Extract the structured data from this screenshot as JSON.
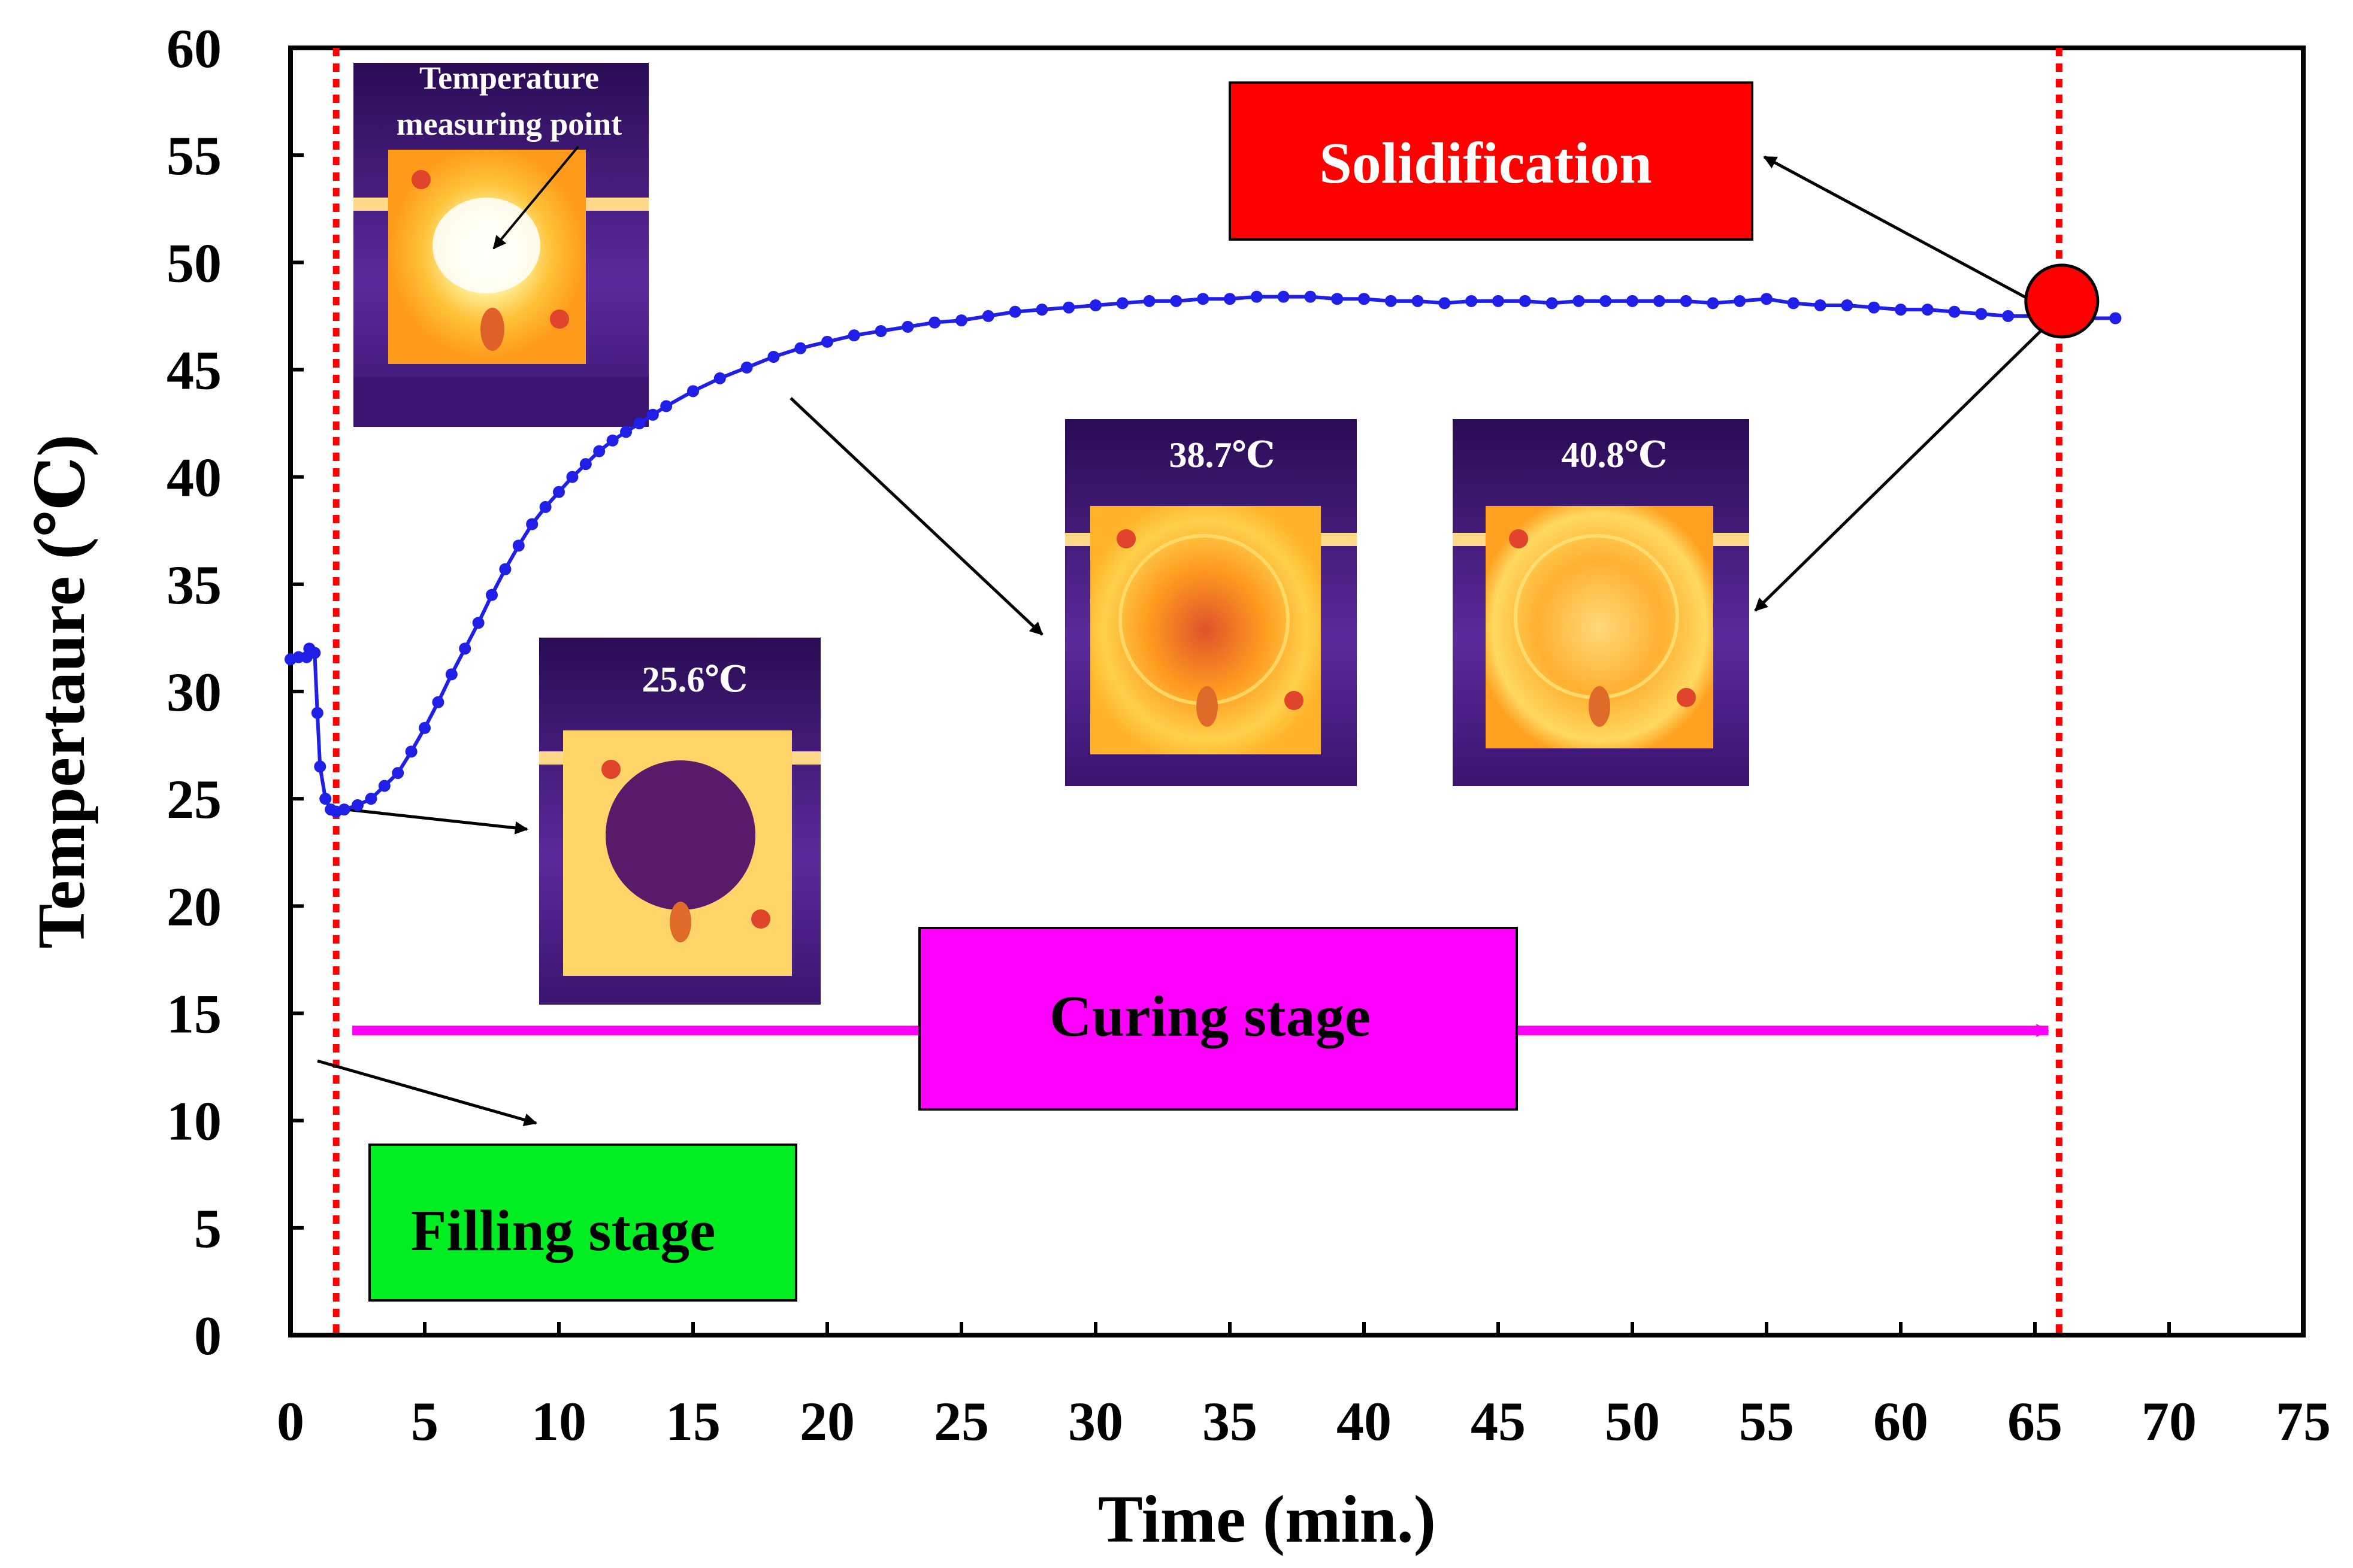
{
  "chart_data": {
    "type": "line",
    "title": "",
    "xlabel": "Time (min.)",
    "ylabel": "Tempertaure (℃)",
    "xlim": [
      0,
      75
    ],
    "ylim": [
      0,
      60
    ],
    "xticks": [
      0,
      5,
      10,
      15,
      20,
      25,
      30,
      35,
      40,
      45,
      50,
      55,
      60,
      65,
      70,
      75
    ],
    "yticks": [
      0,
      5,
      10,
      15,
      20,
      25,
      30,
      35,
      40,
      45,
      50,
      55,
      60
    ],
    "grid": false,
    "series": [
      {
        "name": "Temperature",
        "color": "#1f1fe8",
        "marker": "circle",
        "x": [
          0.0,
          0.3,
          0.6,
          0.7,
          0.9,
          1.0,
          1.1,
          1.3,
          1.5,
          1.7,
          2.0,
          2.5,
          3.0,
          3.5,
          4.0,
          4.5,
          5.0,
          5.5,
          6.0,
          6.5,
          7.0,
          7.5,
          8.0,
          8.5,
          9.0,
          9.5,
          10.0,
          10.5,
          11.0,
          11.5,
          12.0,
          12.5,
          13.0,
          13.5,
          14.0,
          15.0,
          16.0,
          17.0,
          18.0,
          19.0,
          20.0,
          21.0,
          22.0,
          23.0,
          24.0,
          25.0,
          26.0,
          27.0,
          28.0,
          29.0,
          30.0,
          31.0,
          32.0,
          33.0,
          34.0,
          35.0,
          36.0,
          37.0,
          38.0,
          39.0,
          40.0,
          41.0,
          42.0,
          43.0,
          44.0,
          45.0,
          46.0,
          47.0,
          48.0,
          49.0,
          50.0,
          51.0,
          52.0,
          53.0,
          54.0,
          55.0,
          56.0,
          57.0,
          58.0,
          59.0,
          60.0,
          61.0,
          62.0,
          63.0,
          64.0,
          65.0,
          66.0,
          67.0,
          68.0
        ],
        "y": [
          31.5,
          31.6,
          31.6,
          32.0,
          31.8,
          29.0,
          26.5,
          25.0,
          24.5,
          24.4,
          24.5,
          24.7,
          25.0,
          25.6,
          26.2,
          27.2,
          28.3,
          29.5,
          30.8,
          32.0,
          33.2,
          34.5,
          35.7,
          36.8,
          37.8,
          38.6,
          39.3,
          40.0,
          40.6,
          41.2,
          41.7,
          42.1,
          42.5,
          42.9,
          43.3,
          44.0,
          44.6,
          45.1,
          45.6,
          46.0,
          46.3,
          46.6,
          46.8,
          47.0,
          47.2,
          47.3,
          47.5,
          47.7,
          47.8,
          47.9,
          48.0,
          48.1,
          48.2,
          48.2,
          48.3,
          48.3,
          48.4,
          48.4,
          48.4,
          48.3,
          48.3,
          48.2,
          48.2,
          48.1,
          48.2,
          48.2,
          48.2,
          48.1,
          48.2,
          48.2,
          48.2,
          48.2,
          48.2,
          48.1,
          48.2,
          48.3,
          48.1,
          48.0,
          48.0,
          47.9,
          47.8,
          47.8,
          47.7,
          47.6,
          47.5,
          47.5,
          47.4,
          47.4,
          47.4
        ]
      }
    ],
    "vlines": [
      {
        "x": 1.7,
        "color": "#ff0000",
        "style": "dotted"
      },
      {
        "x": 65.9,
        "color": "#ff0000",
        "style": "dotted"
      }
    ],
    "annotations": [
      {
        "text": "Solidification",
        "color": "#ff0000"
      },
      {
        "text": "Curing stage",
        "color": "#ff00ff"
      },
      {
        "text": "Filling stage",
        "color": "#00ee22"
      }
    ],
    "solidification_point": {
      "x": 66.0,
      "y": 48.2,
      "color": "#ff0000"
    },
    "curing_arrow": {
      "x_start": 2.3,
      "x_end": 65.5,
      "y": 14.2,
      "color": "#ff00ff"
    },
    "thermal_images": [
      {
        "label_lines": [
          "Temperature",
          "measuring point"
        ]
      },
      {
        "label": "25.6℃"
      },
      {
        "label": "38.7℃"
      },
      {
        "label": "40.8℃"
      }
    ]
  }
}
